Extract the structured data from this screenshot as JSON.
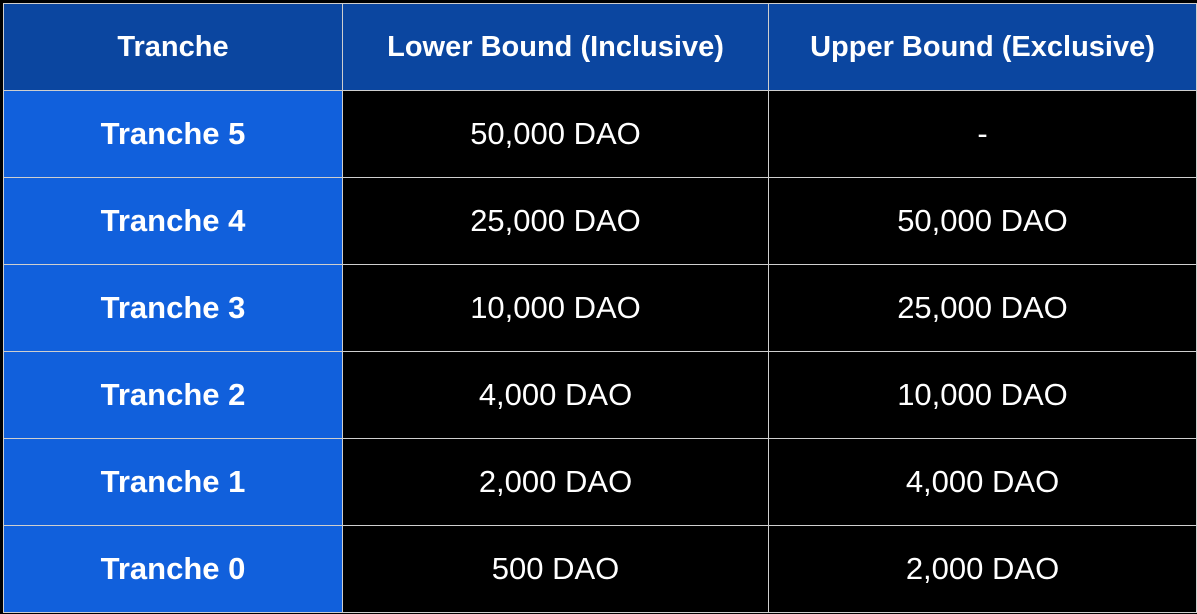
{
  "table": {
    "headers": [
      "Tranche",
      "Lower Bound (Inclusive)",
      "Upper Bound (Exclusive)"
    ],
    "rows": [
      {
        "tranche": "Tranche 5",
        "lower": "50,000 DAO",
        "upper": "-"
      },
      {
        "tranche": "Tranche 4",
        "lower": "25,000 DAO",
        "upper": "50,000 DAO"
      },
      {
        "tranche": "Tranche 3",
        "lower": "10,000 DAO",
        "upper": "25,000 DAO"
      },
      {
        "tranche": "Tranche 2",
        "lower": "4,000 DAO",
        "upper": "10,000 DAO"
      },
      {
        "tranche": "Tranche 1",
        "lower": "2,000 DAO",
        "upper": "4,000 DAO"
      },
      {
        "tranche": "Tranche 0",
        "lower": "500 DAO",
        "upper": "2,000 DAO"
      }
    ]
  },
  "colors": {
    "header_bg": "#0b46a0",
    "name_cell_bg": "#1160dc",
    "value_cell_bg": "#000000",
    "text": "#ffffff",
    "grid": "#cfcfcf"
  }
}
